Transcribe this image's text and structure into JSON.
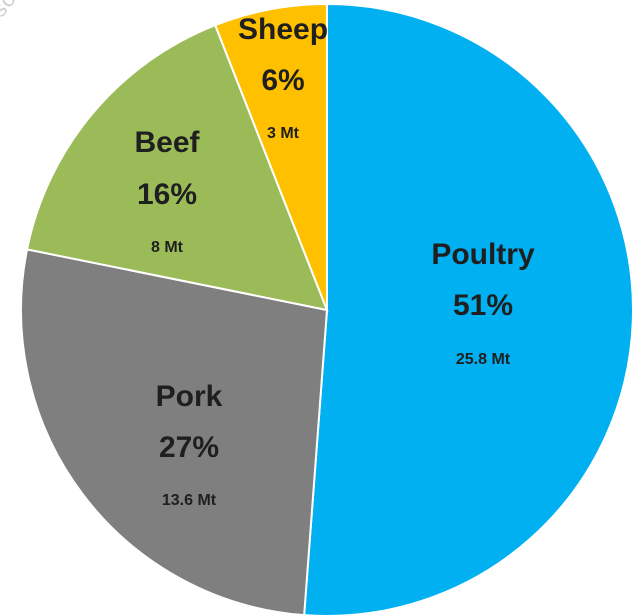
{
  "chart_data": {
    "type": "pie",
    "title": "",
    "start_angle_deg": 0,
    "direction": "clockwise",
    "slices": [
      {
        "label": "Poultry",
        "percent_label": "51%",
        "value_label": "25.8 Mt",
        "value": 25.8,
        "color": "#00B0F0"
      },
      {
        "label": "Pork",
        "percent_label": "27%",
        "value_label": "13.6 Mt",
        "value": 13.6,
        "color": "#7F7F7F"
      },
      {
        "label": "Beef",
        "percent_label": "16%",
        "value_label": "8 Mt",
        "value": 8,
        "color": "#9BBB59"
      },
      {
        "label": "Sheep",
        "percent_label": "6%",
        "value_label": "3 Mt",
        "value": 3,
        "color": "#FFC000"
      }
    ]
  },
  "watermark": "source"
}
